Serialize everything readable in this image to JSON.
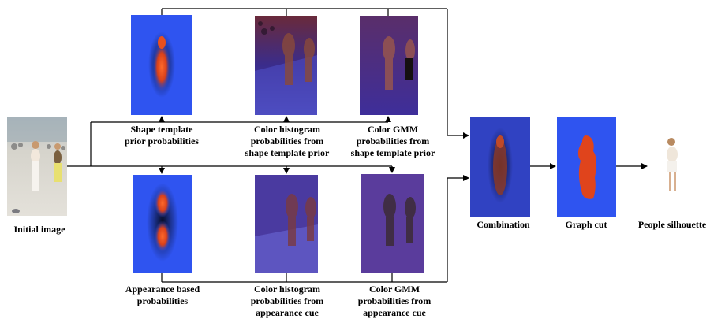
{
  "labels": {
    "initial": "Initial image",
    "shape_prior": "Shape template\nprior probabilities",
    "hist_shape": "Color histogram\nprobabilities from\nshape template prior",
    "gmm_shape": "Color GMM\nprobabilities from\nshape template prior",
    "appearance": "Appearance based\nprobabilities",
    "hist_app": "Color histogram\nprobabilities from\nappearance cue",
    "gmm_app": "Color GMM\nprobabilities from\nappearance cue",
    "combination": "Combination",
    "graphcut": "Graph cut",
    "silhouette": "People silhouette"
  },
  "colors": {
    "map_blue": "#2f54f0",
    "blob_orange": "#e0441c",
    "hist_purple": "#4a3a9a",
    "gmm_purple": "#5a3c9c",
    "combo_blue": "#2c48d8",
    "street_grey": "#d8d6d0"
  }
}
